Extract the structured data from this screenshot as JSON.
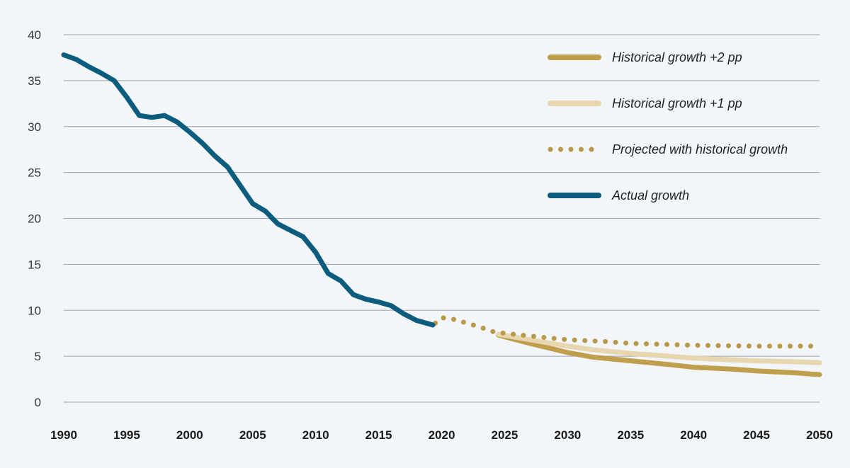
{
  "chart_data": {
    "type": "line",
    "title": "",
    "xlabel": "",
    "ylabel": "",
    "xlim": [
      1990,
      2050
    ],
    "ylim": [
      0,
      40
    ],
    "grid": true,
    "legend_position": "top-right",
    "y_ticks": [
      "0",
      "5",
      "10",
      "15",
      "20",
      "25",
      "30",
      "35",
      "40"
    ],
    "x_ticks": [
      "1990",
      "1995",
      "2000",
      "2005",
      "2010",
      "2015",
      "2020",
      "2025",
      "2030",
      "2035",
      "2040",
      "2045",
      "2050"
    ],
    "series": [
      {
        "name": "Historical growth +2 pp",
        "style": "solid",
        "color": "#bf9f4d",
        "x": [
          2024.5,
          2027,
          2030,
          2032,
          2035,
          2038,
          2040,
          2043,
          2045,
          2048,
          2050
        ],
        "y": [
          7.3,
          6.4,
          5.4,
          4.9,
          4.5,
          4.1,
          3.8,
          3.6,
          3.4,
          3.2,
          3.0
        ]
      },
      {
        "name": "Historical growth +1 pp",
        "style": "solid",
        "color": "#e7d6b0",
        "x": [
          2024.5,
          2027,
          2030,
          2032,
          2035,
          2038,
          2040,
          2043,
          2045,
          2048,
          2050
        ],
        "y": [
          7.4,
          6.8,
          6.1,
          5.7,
          5.3,
          5.0,
          4.8,
          4.6,
          4.5,
          4.4,
          4.3
        ]
      },
      {
        "name": "Projected with historical growth",
        "style": "dotted",
        "color": "#b8994a",
        "x": [
          2019.5,
          2020,
          2021,
          2022,
          2023,
          2024,
          2025,
          2027,
          2030,
          2033,
          2035,
          2040,
          2045,
          2050
        ],
        "y": [
          8.6,
          9.2,
          9.0,
          8.6,
          8.2,
          7.7,
          7.5,
          7.2,
          6.8,
          6.6,
          6.4,
          6.2,
          6.1,
          6.1
        ]
      },
      {
        "name": "Actual growth",
        "style": "solid",
        "color": "#0c5c7e",
        "x": [
          1990,
          1991,
          1992,
          1993,
          1994,
          1995,
          1996,
          1997,
          1998,
          1999,
          2000,
          2001,
          2002,
          2003,
          2004,
          2005,
          2006,
          2007,
          2008,
          2009,
          2010,
          2011,
          2012,
          2013,
          2014,
          2015,
          2016,
          2017,
          2018,
          2019.3
        ],
        "y": [
          37.8,
          37.3,
          36.5,
          35.8,
          35.0,
          33.2,
          31.2,
          31.0,
          31.2,
          30.5,
          29.4,
          28.2,
          26.8,
          25.6,
          23.6,
          21.6,
          20.8,
          19.4,
          18.7,
          18.0,
          16.3,
          14.0,
          13.2,
          11.7,
          11.2,
          10.9,
          10.5,
          9.6,
          8.9,
          8.4
        ]
      }
    ]
  }
}
